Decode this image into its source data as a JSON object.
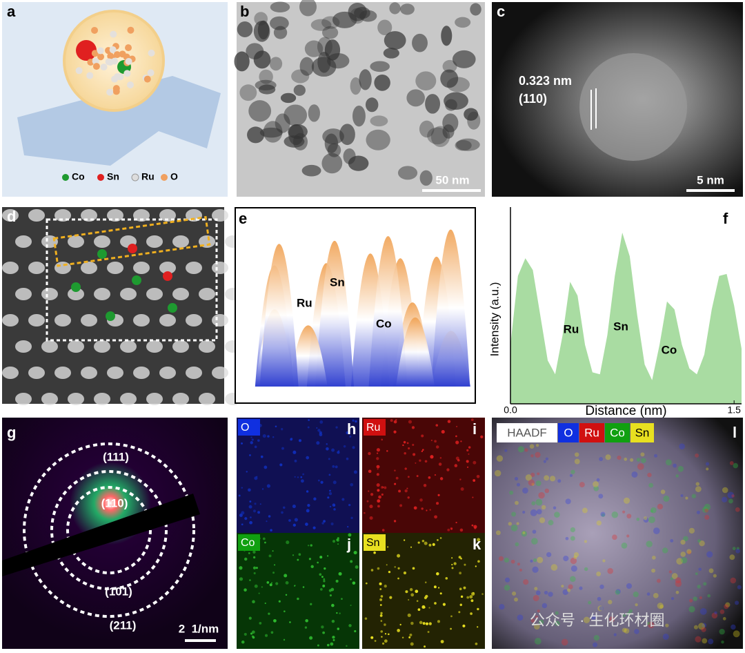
{
  "panels": {
    "a": {
      "label": "a",
      "legend": [
        "Co",
        "Sn",
        "Ru",
        "O"
      ]
    },
    "b": {
      "label": "b",
      "scale_bar": "50 nm"
    },
    "c": {
      "label": "c",
      "spacing": "0.323 nm",
      "plane": "(110)",
      "scale_bar": "5 nm"
    },
    "d": {
      "label": "d"
    },
    "e": {
      "label": "e",
      "atoms": [
        "Ru",
        "Sn",
        "Co"
      ]
    },
    "f": {
      "label": "f"
    },
    "g": {
      "label": "g",
      "rings": [
        "(111)",
        "(110)",
        "(101)",
        "(211)"
      ],
      "scale_bar": "2  1/nm"
    },
    "h": {
      "label": "h",
      "element": "O"
    },
    "i": {
      "label": "i",
      "element": "Ru"
    },
    "j": {
      "label": "j",
      "element": "Co"
    },
    "k": {
      "label": "k",
      "element": "Sn"
    },
    "l": {
      "label": "l",
      "tags": [
        "HAADF",
        "O",
        "Ru",
        "Co",
        "Sn"
      ]
    },
    "watermark": "公众号 · 生化环材圈"
  },
  "chart_data": {
    "type": "area",
    "xlabel": "Distance (nm)",
    "ylabel": "Intensity (a.u.)",
    "color": "#a9dca2",
    "x": [
      0,
      0.05,
      0.1,
      0.15,
      0.2,
      0.25,
      0.3,
      0.35,
      0.4,
      0.45,
      0.5,
      0.55,
      0.6,
      0.65,
      0.7,
      0.75,
      0.8,
      0.85,
      0.9,
      0.95,
      1.0,
      1.05,
      1.1,
      1.15,
      1.2,
      1.25,
      1.3,
      1.35,
      1.4,
      1.45,
      1.5,
      1.55
    ],
    "values": [
      0.3,
      0.65,
      0.74,
      0.68,
      0.45,
      0.22,
      0.15,
      0.35,
      0.62,
      0.55,
      0.3,
      0.16,
      0.15,
      0.35,
      0.65,
      0.87,
      0.75,
      0.45,
      0.2,
      0.12,
      0.3,
      0.52,
      0.48,
      0.3,
      0.18,
      0.15,
      0.25,
      0.48,
      0.65,
      0.66,
      0.5,
      0.28
    ],
    "xlim": [
      0,
      1.55
    ],
    "ylim": [
      0,
      1
    ],
    "xticks": [
      {
        "value": 0,
        "label": "0.0"
      },
      1.5
    ],
    "annotations": [
      "Ru",
      "Sn",
      "Co"
    ]
  }
}
